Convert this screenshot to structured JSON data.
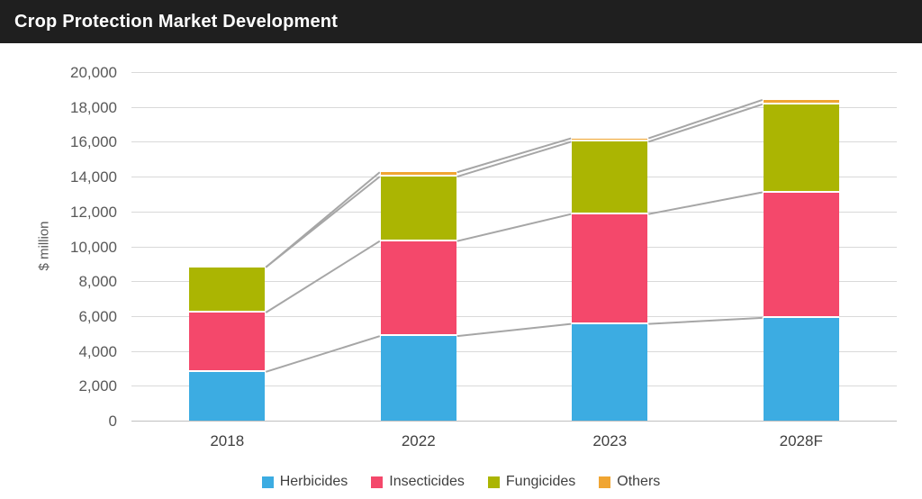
{
  "title": "Crop Protection Market Development",
  "chart_data": {
    "type": "bar",
    "stacked": true,
    "title": "Crop Protection Market Development",
    "categories": [
      "2018",
      "2022",
      "2023",
      "2028F"
    ],
    "series": [
      {
        "name": "Herbicides",
        "color": "#3cace2",
        "values": [
          2800,
          4850,
          5550,
          5900
        ]
      },
      {
        "name": "Insecticides",
        "color": "#f4486b",
        "values": [
          3400,
          5450,
          6300,
          7200
        ]
      },
      {
        "name": "Fungicides",
        "color": "#abb502",
        "values": [
          2600,
          3700,
          4150,
          5050
        ]
      },
      {
        "name": "Others",
        "color": "#f0a532",
        "values": [
          0,
          250,
          200,
          250
        ]
      }
    ],
    "totals": [
      8800,
      14250,
      16200,
      18400
    ],
    "xlabel": "",
    "ylabel": "$ million",
    "ylim": [
      0,
      20000
    ],
    "ytick_step": 2000,
    "ytick_labels": [
      "0",
      "2,000",
      "4,000",
      "6,000",
      "8,000",
      "10,000",
      "12,000",
      "14,000",
      "16,000",
      "18,000",
      "20,000"
    ],
    "grid": true,
    "legend_position": "bottom",
    "annotations": "gray connector lines join the top of each stacked segment between adjacent bars"
  },
  "style_colors": {
    "title_bar_bg": "#1f1f1f",
    "title_text": "#ffffff",
    "gridline": "#d9d9d9",
    "baseline": "#bfbfbf",
    "connector_line": "#a6a6a6",
    "axis_text": "#595959",
    "label_text": "#404040",
    "background": "#ffffff"
  }
}
